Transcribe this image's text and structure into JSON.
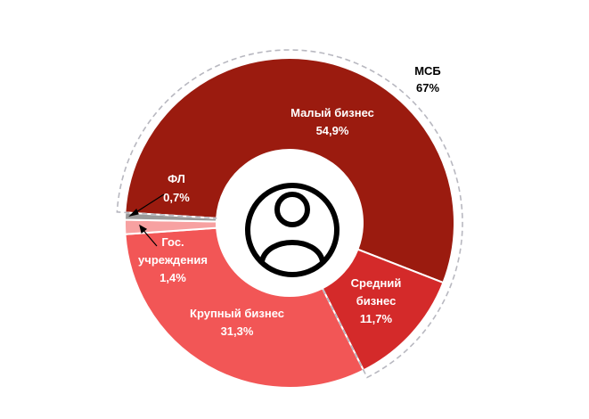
{
  "chart_data": {
    "type": "pie",
    "variant": "donut",
    "segments": [
      {
        "name": "Малый бизнес",
        "value_label": "54,9%",
        "value": 54.9,
        "color": "#9b1b0f"
      },
      {
        "name": "Средний бизнес",
        "value_label": "11,7%",
        "value": 11.7,
        "color": "#d42a2a"
      },
      {
        "name": "Крупный бизнес",
        "value_label": "31,3%",
        "value": 31.3,
        "color": "#f25656"
      },
      {
        "name": "Гос. учреждения",
        "value_label": "1,4%",
        "value": 1.4,
        "color": "#f7a1a1"
      },
      {
        "name": "ФЛ",
        "value_label": "0,7%",
        "value": 0.7,
        "color": "#9a9a9a"
      }
    ],
    "group": {
      "name": "МСБ",
      "value_label": "67%",
      "members": [
        "Малый бизнес",
        "Средний бизнес"
      ]
    },
    "center_icon": "user-circle-icon"
  }
}
